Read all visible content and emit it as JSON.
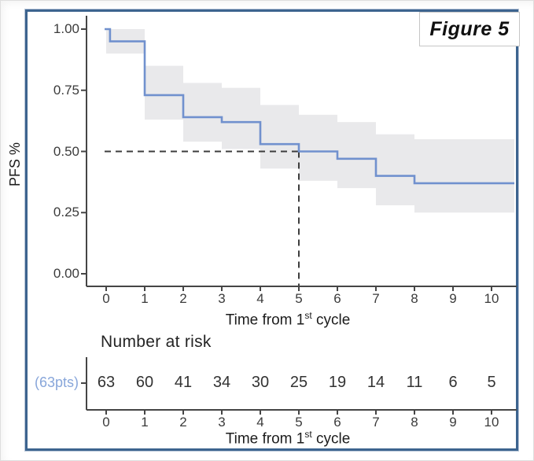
{
  "figure": {
    "label": "Figure 5"
  },
  "colors": {
    "curve": "#7191ce",
    "confidence_band": "#e9e9eb",
    "median_dash": "#3d3d3d",
    "axis": "#454545",
    "tick_text": "#3b3b3b",
    "risk_group_label": "#88a6da",
    "frame_border": "#3d648f"
  },
  "chart_data": {
    "type": "line",
    "subtype": "kaplan-meier-step",
    "title": "Figure 5",
    "ylabel": "PFS %",
    "xlabel": "Time from 1st cycle",
    "xlabel_parts": {
      "base": "Time from 1",
      "sup": "st",
      "rest": " cycle"
    },
    "xlim": [
      0,
      10.6
    ],
    "ylim": [
      0.0,
      1.0
    ],
    "grid": false,
    "legend": false,
    "x_ticks": [
      0,
      1,
      2,
      3,
      4,
      5,
      6,
      7,
      8,
      9,
      10
    ],
    "y_ticks": [
      "1.00",
      "0.75",
      "0.50",
      "0.25",
      "0.00"
    ],
    "y_tick_values": [
      1.0,
      0.75,
      0.5,
      0.25,
      0.0
    ],
    "km_steps": [
      [
        0,
        1.0
      ],
      [
        0.1,
        0.95
      ],
      [
        1,
        0.73
      ],
      [
        2,
        0.64
      ],
      [
        3,
        0.62
      ],
      [
        4,
        0.53
      ],
      [
        5,
        0.5
      ],
      [
        6,
        0.47
      ],
      [
        7,
        0.4
      ],
      [
        8,
        0.37
      ]
    ],
    "curve_end_x": 10.6,
    "ci_segments": [
      [
        0,
        1,
        0.9,
        1.0
      ],
      [
        1,
        2,
        0.63,
        0.85
      ],
      [
        2,
        3,
        0.54,
        0.78
      ],
      [
        3,
        4,
        0.51,
        0.76
      ],
      [
        4,
        5,
        0.43,
        0.69
      ],
      [
        5,
        6,
        0.38,
        0.65
      ],
      [
        6,
        7,
        0.35,
        0.62
      ],
      [
        7,
        8,
        0.28,
        0.57
      ],
      [
        8,
        10.6,
        0.25,
        0.55
      ]
    ],
    "median_annotation": {
      "y": 0.5,
      "x": 5
    }
  },
  "risk_table": {
    "title": "Number at risk",
    "group_label": "(63pts)",
    "x_ticks": [
      0,
      1,
      2,
      3,
      4,
      5,
      6,
      7,
      8,
      9,
      10
    ],
    "counts": [
      63,
      60,
      41,
      34,
      30,
      25,
      19,
      14,
      11,
      6,
      5
    ],
    "xlabel_parts": {
      "base": "Time from 1",
      "sup": "st",
      "rest": " cycle"
    }
  }
}
